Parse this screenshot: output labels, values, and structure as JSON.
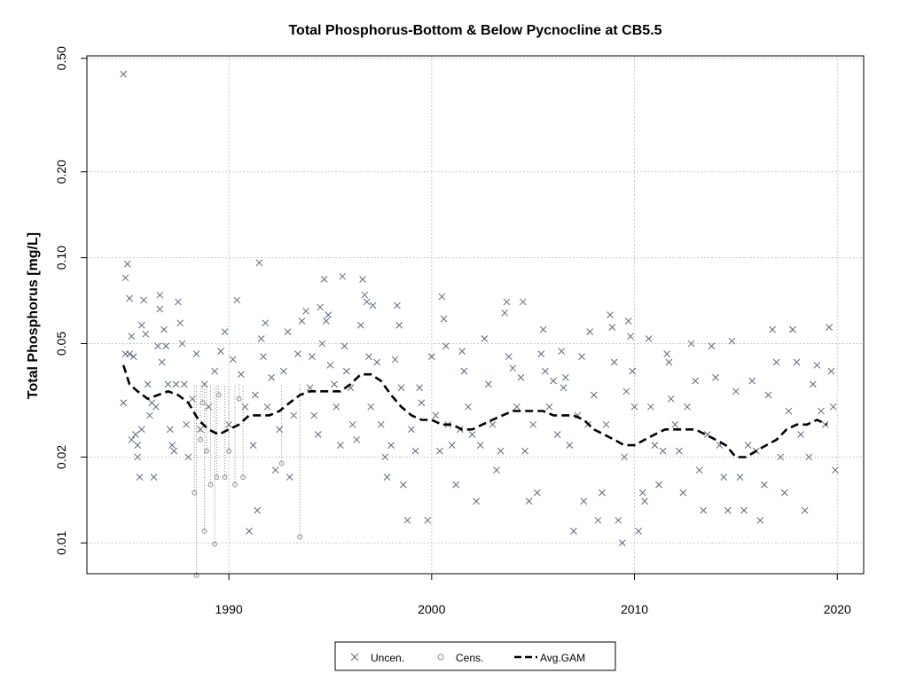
{
  "chart_data": {
    "type": "scatter",
    "title": "Total Phosphorus-Bottom & Below Pycnocline at CB5.5",
    "xlabel": "",
    "ylabel": "Total Phosphorus [mg/L]",
    "y_scale": "log",
    "xlim": [
      1983.0,
      2021.3
    ],
    "ylim": [
      0.0078,
      0.51
    ],
    "x_ticks": [
      1990,
      2000,
      2010,
      2020
    ],
    "x_tick_labels": [
      "1990",
      "2000",
      "2010",
      "2020"
    ],
    "y_ticks": [
      0.01,
      0.02,
      0.05,
      0.1,
      0.2,
      0.5
    ],
    "y_tick_labels": [
      "0.01",
      "0.02",
      "0.05",
      "0.10",
      "0.20",
      "0.50"
    ],
    "grid": true,
    "legend_position": "bottom-center",
    "legend": [
      "Uncen.",
      "Cens.",
      "Avg.GAM"
    ],
    "colors": {
      "uncensored": "#5a6a80",
      "censored": "#8a8a8a",
      "gam": "#000000",
      "grid": "#c8c8c8"
    },
    "series": [
      {
        "name": "Uncen.",
        "marker": "x",
        "points": [
          [
            1984.8,
            0.44
          ],
          [
            1984.9,
            0.085
          ],
          [
            1985.0,
            0.095
          ],
          [
            1985.1,
            0.072
          ],
          [
            1984.9,
            0.046
          ],
          [
            1985.1,
            0.046
          ],
          [
            1984.8,
            0.031
          ],
          [
            1985.2,
            0.053
          ],
          [
            1985.3,
            0.045
          ],
          [
            1985.2,
            0.023
          ],
          [
            1985.4,
            0.024
          ],
          [
            1985.5,
            0.022
          ],
          [
            1985.6,
            0.017
          ],
          [
            1985.5,
            0.02
          ],
          [
            1985.7,
            0.025
          ],
          [
            1985.8,
            0.071
          ],
          [
            1985.7,
            0.058
          ],
          [
            1985.9,
            0.054
          ],
          [
            1986.0,
            0.036
          ],
          [
            1986.1,
            0.028
          ],
          [
            1986.2,
            0.031
          ],
          [
            1986.3,
            0.017
          ],
          [
            1986.4,
            0.03
          ],
          [
            1986.5,
            0.049
          ],
          [
            1986.6,
            0.074
          ],
          [
            1986.6,
            0.066
          ],
          [
            1986.7,
            0.043
          ],
          [
            1986.8,
            0.056
          ],
          [
            1986.9,
            0.049
          ],
          [
            1987.0,
            0.036
          ],
          [
            1987.1,
            0.025
          ],
          [
            1987.2,
            0.022
          ],
          [
            1987.3,
            0.021
          ],
          [
            1987.4,
            0.036
          ],
          [
            1987.5,
            0.07
          ],
          [
            1987.6,
            0.059
          ],
          [
            1987.7,
            0.05
          ],
          [
            1987.8,
            0.036
          ],
          [
            1987.9,
            0.026
          ],
          [
            1988.0,
            0.02
          ],
          [
            1988.2,
            0.032
          ],
          [
            1988.4,
            0.046
          ],
          [
            1988.6,
            0.025
          ],
          [
            1988.8,
            0.036
          ],
          [
            1989.0,
            0.03
          ],
          [
            1989.3,
            0.04
          ],
          [
            1989.6,
            0.047
          ],
          [
            1989.8,
            0.055
          ],
          [
            1990.0,
            0.026
          ],
          [
            1990.2,
            0.044
          ],
          [
            1990.4,
            0.071
          ],
          [
            1990.6,
            0.039
          ],
          [
            1990.8,
            0.03
          ],
          [
            1991.0,
            0.011
          ],
          [
            1991.2,
            0.022
          ],
          [
            1991.3,
            0.033
          ],
          [
            1991.4,
            0.013
          ],
          [
            1991.5,
            0.096
          ],
          [
            1991.6,
            0.052
          ],
          [
            1991.7,
            0.045
          ],
          [
            1991.8,
            0.059
          ],
          [
            1991.9,
            0.03
          ],
          [
            1992.1,
            0.038
          ],
          [
            1992.3,
            0.018
          ],
          [
            1992.5,
            0.025
          ],
          [
            1992.7,
            0.04
          ],
          [
            1992.9,
            0.055
          ],
          [
            1993.0,
            0.017
          ],
          [
            1993.2,
            0.028
          ],
          [
            1993.4,
            0.046
          ],
          [
            1993.6,
            0.06
          ],
          [
            1993.8,
            0.065
          ],
          [
            1994.0,
            0.035
          ],
          [
            1994.1,
            0.045
          ],
          [
            1994.2,
            0.028
          ],
          [
            1994.4,
            0.024
          ],
          [
            1994.5,
            0.067
          ],
          [
            1994.6,
            0.05
          ],
          [
            1994.7,
            0.084
          ],
          [
            1994.8,
            0.06
          ],
          [
            1994.9,
            0.063
          ],
          [
            1995.0,
            0.042
          ],
          [
            1995.2,
            0.036
          ],
          [
            1995.3,
            0.03
          ],
          [
            1995.5,
            0.022
          ],
          [
            1995.6,
            0.086
          ],
          [
            1995.7,
            0.049
          ],
          [
            1995.8,
            0.04
          ],
          [
            1996.0,
            0.035
          ],
          [
            1996.1,
            0.026
          ],
          [
            1996.3,
            0.023
          ],
          [
            1996.5,
            0.058
          ],
          [
            1996.6,
            0.084
          ],
          [
            1996.7,
            0.074
          ],
          [
            1996.8,
            0.07
          ],
          [
            1996.9,
            0.045
          ],
          [
            1997.0,
            0.03
          ],
          [
            1997.1,
            0.068
          ],
          [
            1997.3,
            0.043
          ],
          [
            1997.5,
            0.026
          ],
          [
            1997.7,
            0.02
          ],
          [
            1997.8,
            0.017
          ],
          [
            1998.0,
            0.022
          ],
          [
            1998.2,
            0.044
          ],
          [
            1998.3,
            0.068
          ],
          [
            1998.4,
            0.058
          ],
          [
            1998.5,
            0.035
          ],
          [
            1998.6,
            0.016
          ],
          [
            1998.8,
            0.012
          ],
          [
            1999.0,
            0.025
          ],
          [
            1999.2,
            0.021
          ],
          [
            1999.4,
            0.035
          ],
          [
            1999.5,
            0.031
          ],
          [
            1999.8,
            0.012
          ],
          [
            2000.0,
            0.045
          ],
          [
            2000.2,
            0.028
          ],
          [
            2000.4,
            0.021
          ],
          [
            2000.5,
            0.073
          ],
          [
            2000.6,
            0.061
          ],
          [
            2000.7,
            0.049
          ],
          [
            2000.8,
            0.026
          ],
          [
            2001.0,
            0.022
          ],
          [
            2001.2,
            0.016
          ],
          [
            2001.4,
            0.025
          ],
          [
            2001.5,
            0.047
          ],
          [
            2001.6,
            0.04
          ],
          [
            2001.8,
            0.03
          ],
          [
            2002.0,
            0.024
          ],
          [
            2002.2,
            0.014
          ],
          [
            2002.4,
            0.022
          ],
          [
            2002.6,
            0.052
          ],
          [
            2002.8,
            0.036
          ],
          [
            2003.0,
            0.026
          ],
          [
            2003.2,
            0.018
          ],
          [
            2003.4,
            0.021
          ],
          [
            2003.6,
            0.064
          ],
          [
            2003.7,
            0.07
          ],
          [
            2003.8,
            0.045
          ],
          [
            2004.0,
            0.041
          ],
          [
            2004.2,
            0.03
          ],
          [
            2004.4,
            0.038
          ],
          [
            2004.5,
            0.07
          ],
          [
            2004.6,
            0.021
          ],
          [
            2004.8,
            0.014
          ],
          [
            2005.0,
            0.026
          ],
          [
            2005.2,
            0.015
          ],
          [
            2005.4,
            0.046
          ],
          [
            2005.5,
            0.056
          ],
          [
            2005.6,
            0.04
          ],
          [
            2005.8,
            0.03
          ],
          [
            2006.0,
            0.037
          ],
          [
            2006.2,
            0.024
          ],
          [
            2006.4,
            0.047
          ],
          [
            2006.5,
            0.035
          ],
          [
            2006.6,
            0.038
          ],
          [
            2006.8,
            0.022
          ],
          [
            2007.0,
            0.011
          ],
          [
            2007.2,
            0.028
          ],
          [
            2007.4,
            0.045
          ],
          [
            2007.5,
            0.014
          ],
          [
            2007.7,
            0.026
          ],
          [
            2007.8,
            0.055
          ],
          [
            2008.0,
            0.033
          ],
          [
            2008.2,
            0.012
          ],
          [
            2008.4,
            0.015
          ],
          [
            2008.6,
            0.026
          ],
          [
            2008.8,
            0.063
          ],
          [
            2008.9,
            0.057
          ],
          [
            2009.0,
            0.043
          ],
          [
            2009.2,
            0.012
          ],
          [
            2009.4,
            0.01
          ],
          [
            2009.5,
            0.02
          ],
          [
            2009.6,
            0.034
          ],
          [
            2009.7,
            0.06
          ],
          [
            2009.8,
            0.053
          ],
          [
            2009.9,
            0.04
          ],
          [
            2010.0,
            0.03
          ],
          [
            2010.2,
            0.011
          ],
          [
            2010.4,
            0.015
          ],
          [
            2010.5,
            0.014
          ],
          [
            2010.7,
            0.052
          ],
          [
            2010.8,
            0.03
          ],
          [
            2011.0,
            0.022
          ],
          [
            2011.2,
            0.016
          ],
          [
            2011.4,
            0.021
          ],
          [
            2011.6,
            0.046
          ],
          [
            2011.7,
            0.043
          ],
          [
            2011.8,
            0.032
          ],
          [
            2012.0,
            0.026
          ],
          [
            2012.2,
            0.021
          ],
          [
            2012.4,
            0.015
          ],
          [
            2012.6,
            0.03
          ],
          [
            2012.8,
            0.05
          ],
          [
            2013.0,
            0.037
          ],
          [
            2013.2,
            0.018
          ],
          [
            2013.4,
            0.013
          ],
          [
            2013.6,
            0.024
          ],
          [
            2013.8,
            0.049
          ],
          [
            2014.0,
            0.038
          ],
          [
            2014.2,
            0.022
          ],
          [
            2014.4,
            0.017
          ],
          [
            2014.6,
            0.013
          ],
          [
            2014.8,
            0.051
          ],
          [
            2015.0,
            0.034
          ],
          [
            2015.2,
            0.017
          ],
          [
            2015.4,
            0.013
          ],
          [
            2015.6,
            0.022
          ],
          [
            2015.8,
            0.037
          ],
          [
            2016.0,
            0.021
          ],
          [
            2016.2,
            0.012
          ],
          [
            2016.4,
            0.016
          ],
          [
            2016.6,
            0.033
          ],
          [
            2016.8,
            0.056
          ],
          [
            2017.0,
            0.043
          ],
          [
            2017.2,
            0.02
          ],
          [
            2017.4,
            0.015
          ],
          [
            2017.6,
            0.029
          ],
          [
            2017.8,
            0.056
          ],
          [
            2018.0,
            0.043
          ],
          [
            2018.2,
            0.024
          ],
          [
            2018.4,
            0.013
          ],
          [
            2018.6,
            0.02
          ],
          [
            2018.8,
            0.036
          ],
          [
            2019.0,
            0.042
          ],
          [
            2019.2,
            0.029
          ],
          [
            2019.4,
            0.026
          ],
          [
            2019.6,
            0.057
          ],
          [
            2019.7,
            0.04
          ],
          [
            2019.8,
            0.03
          ],
          [
            2019.9,
            0.018
          ]
        ]
      },
      {
        "name": "Cens.",
        "marker": "o",
        "points": [
          [
            1988.3,
            0.015
          ],
          [
            1988.4,
            0.0077
          ],
          [
            1988.6,
            0.023
          ],
          [
            1988.7,
            0.031
          ],
          [
            1988.8,
            0.011
          ],
          [
            1988.9,
            0.021
          ],
          [
            1989.1,
            0.016
          ],
          [
            1989.3,
            0.0099
          ],
          [
            1989.4,
            0.017
          ],
          [
            1989.5,
            0.033
          ],
          [
            1989.8,
            0.017
          ],
          [
            1990.0,
            0.021
          ],
          [
            1990.3,
            0.016
          ],
          [
            1990.5,
            0.032
          ],
          [
            1990.7,
            0.017
          ],
          [
            1992.6,
            0.019
          ],
          [
            1993.5,
            0.0105
          ]
        ]
      },
      {
        "name": "Avg.GAM",
        "marker": "dashed-line",
        "x": [
          1984.8,
          1985.1,
          1985.5,
          1986.0,
          1986.5,
          1987.0,
          1987.5,
          1988.0,
          1988.5,
          1989.0,
          1989.5,
          1990.0,
          1990.5,
          1991.0,
          1991.5,
          1992.0,
          1992.5,
          1993.0,
          1993.5,
          1994.0,
          1994.5,
          1995.0,
          1995.5,
          1996.0,
          1996.5,
          1997.0,
          1997.5,
          1998.0,
          1998.5,
          1999.0,
          1999.5,
          2000.0,
          2000.5,
          2001.0,
          2001.5,
          2002.0,
          2002.5,
          2003.0,
          2003.5,
          2004.0,
          2004.5,
          2005.0,
          2005.5,
          2006.0,
          2006.5,
          2007.0,
          2007.5,
          2008.0,
          2008.5,
          2009.0,
          2009.5,
          2010.0,
          2010.5,
          2011.0,
          2011.5,
          2012.0,
          2012.5,
          2013.0,
          2013.5,
          2014.0,
          2014.5,
          2015.0,
          2015.5,
          2016.0,
          2016.5,
          2017.0,
          2017.5,
          2018.0,
          2018.5,
          2019.0,
          2019.5
        ],
        "y": [
          0.042,
          0.036,
          0.034,
          0.032,
          0.033,
          0.034,
          0.033,
          0.031,
          0.027,
          0.025,
          0.024,
          0.025,
          0.026,
          0.028,
          0.028,
          0.028,
          0.029,
          0.031,
          0.033,
          0.034,
          0.034,
          0.034,
          0.034,
          0.036,
          0.039,
          0.039,
          0.037,
          0.033,
          0.03,
          0.028,
          0.027,
          0.027,
          0.026,
          0.026,
          0.025,
          0.025,
          0.026,
          0.027,
          0.028,
          0.029,
          0.029,
          0.029,
          0.029,
          0.028,
          0.028,
          0.028,
          0.027,
          0.025,
          0.024,
          0.023,
          0.022,
          0.022,
          0.023,
          0.024,
          0.025,
          0.025,
          0.025,
          0.025,
          0.024,
          0.023,
          0.022,
          0.02,
          0.02,
          0.021,
          0.022,
          0.023,
          0.025,
          0.026,
          0.026,
          0.027,
          0.026
        ]
      }
    ]
  }
}
